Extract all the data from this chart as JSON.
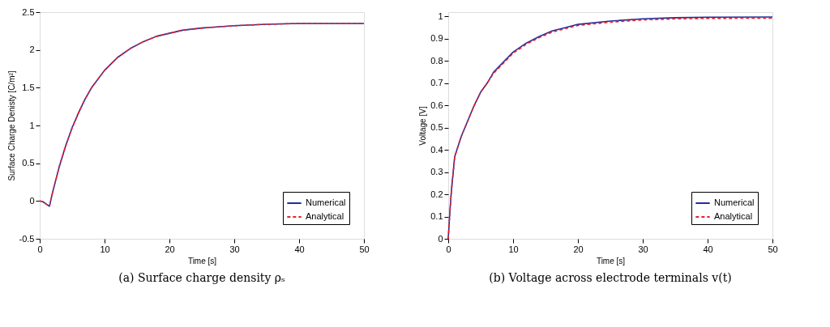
{
  "chart_data": [
    {
      "type": "line",
      "xlabel": "Time [s]",
      "ylabel": "Surface Charge Denisty [C/m²]",
      "annotations": [
        "(a) Surface charge density ρₛ"
      ],
      "xlim": [
        0,
        50
      ],
      "ylim": [
        -0.5,
        2.5
      ],
      "xticks": [
        0,
        10,
        20,
        30,
        40,
        50
      ],
      "yticks": [
        -0.5,
        0,
        0.5,
        1,
        1.5,
        2,
        2.5
      ],
      "grid": false,
      "legend": "bottom right",
      "marker": "none",
      "x": [
        0,
        0.5,
        1,
        1.5,
        2,
        3,
        4,
        5,
        6,
        7,
        8,
        10,
        12,
        14,
        16,
        18,
        20,
        22,
        25,
        30,
        35,
        40,
        45,
        50
      ],
      "series": [
        {
          "name": "Numerical",
          "color": "#1f2f9f",
          "line_style": "solid",
          "values": [
            0,
            -0.01,
            -0.04,
            -0.07,
            0.12,
            0.45,
            0.73,
            0.97,
            1.17,
            1.35,
            1.5,
            1.73,
            1.9,
            2.02,
            2.11,
            2.18,
            2.22,
            2.26,
            2.29,
            2.32,
            2.34,
            2.35,
            2.35,
            2.35
          ]
        },
        {
          "name": "Analytical",
          "color": "#e8202a",
          "line_style": "dashed",
          "values": [
            0,
            -0.01,
            -0.04,
            -0.07,
            0.12,
            0.45,
            0.73,
            0.97,
            1.17,
            1.35,
            1.5,
            1.73,
            1.9,
            2.02,
            2.11,
            2.18,
            2.22,
            2.26,
            2.29,
            2.32,
            2.34,
            2.35,
            2.35,
            2.35
          ]
        }
      ]
    },
    {
      "type": "line",
      "xlabel": "Time [s]",
      "ylabel": "Voltage [V]",
      "annotations": [
        "(b) Voltage across electrode terminals v(t)"
      ],
      "xlim": [
        0,
        50
      ],
      "ylim": [
        0,
        1.02
      ],
      "xticks": [
        0,
        10,
        20,
        30,
        40,
        50
      ],
      "yticks": [
        0,
        0.1,
        0.2,
        0.3,
        0.4,
        0.5,
        0.6,
        0.7,
        0.8,
        0.9,
        1
      ],
      "grid": false,
      "legend": "bottom right",
      "marker": "none",
      "x": [
        0,
        0.25,
        0.5,
        1,
        2,
        3,
        4,
        5,
        6,
        7,
        8,
        10,
        12,
        14,
        16,
        18,
        20,
        25,
        30,
        35,
        40,
        50
      ],
      "series": [
        {
          "name": "Numerical",
          "color": "#1f2f9f",
          "line_style": "solid",
          "values": [
            0,
            0.12,
            0.22,
            0.37,
            0.46,
            0.53,
            0.6,
            0.66,
            0.7,
            0.75,
            0.78,
            0.84,
            0.88,
            0.91,
            0.935,
            0.95,
            0.965,
            0.98,
            0.99,
            0.995,
            0.997,
            0.998
          ]
        },
        {
          "name": "Analytical",
          "color": "#e8202a",
          "line_style": "dashed",
          "values": [
            0,
            0.12,
            0.22,
            0.37,
            0.46,
            0.53,
            0.6,
            0.66,
            0.7,
            0.745,
            0.775,
            0.835,
            0.875,
            0.905,
            0.93,
            0.945,
            0.96,
            0.975,
            0.985,
            0.99,
            0.992,
            0.993
          ]
        }
      ]
    }
  ]
}
